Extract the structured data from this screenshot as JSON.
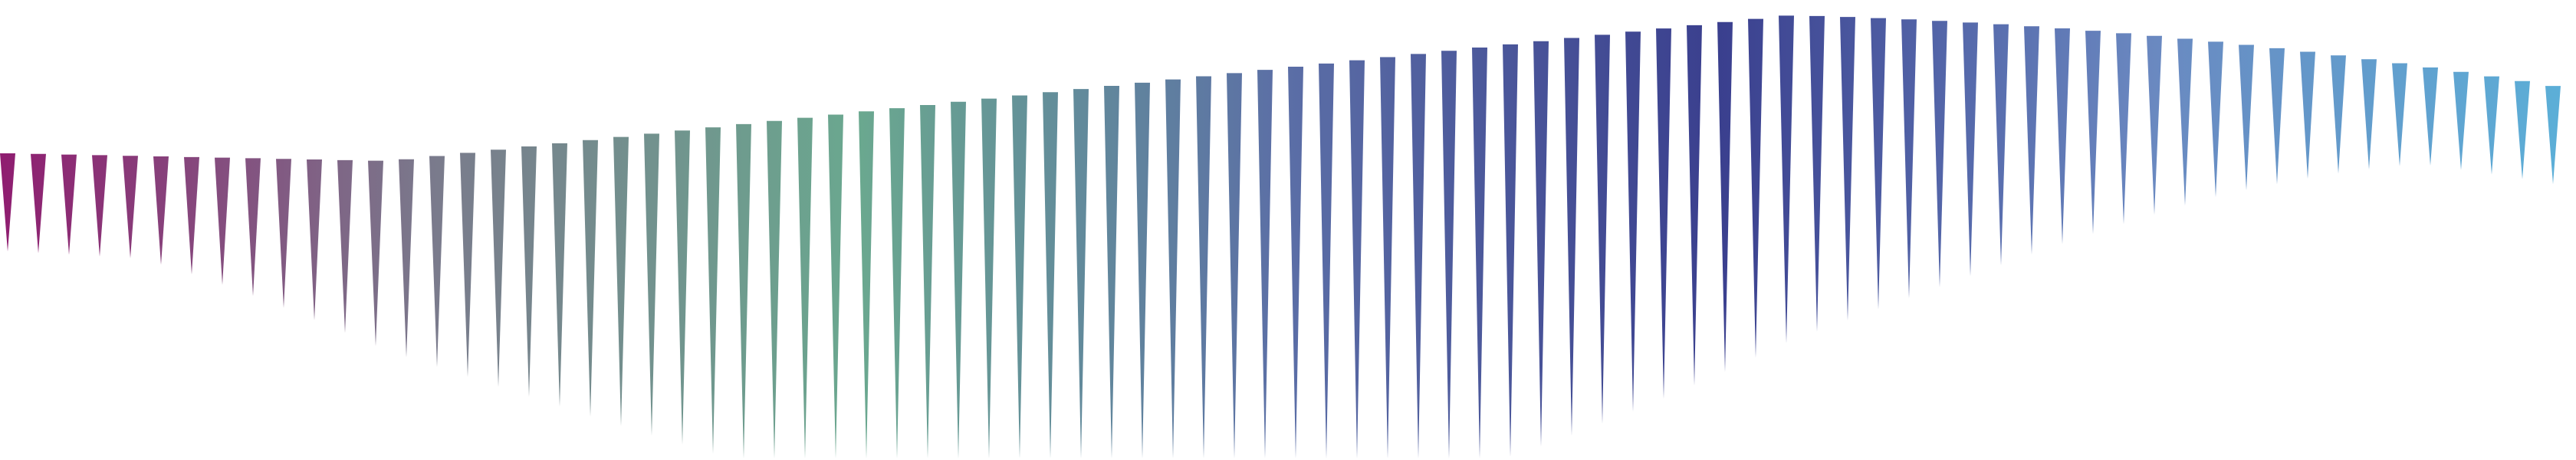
{
  "graphic": {
    "kind": "decorative-triangle-row",
    "triangle_count": 84,
    "color_stops": [
      "#8f1d70",
      "#7a7a8c",
      "#6aa88f",
      "#5b6ea6",
      "#3a3f8e",
      "#6a88c0",
      "#5bb0d8"
    ]
  }
}
